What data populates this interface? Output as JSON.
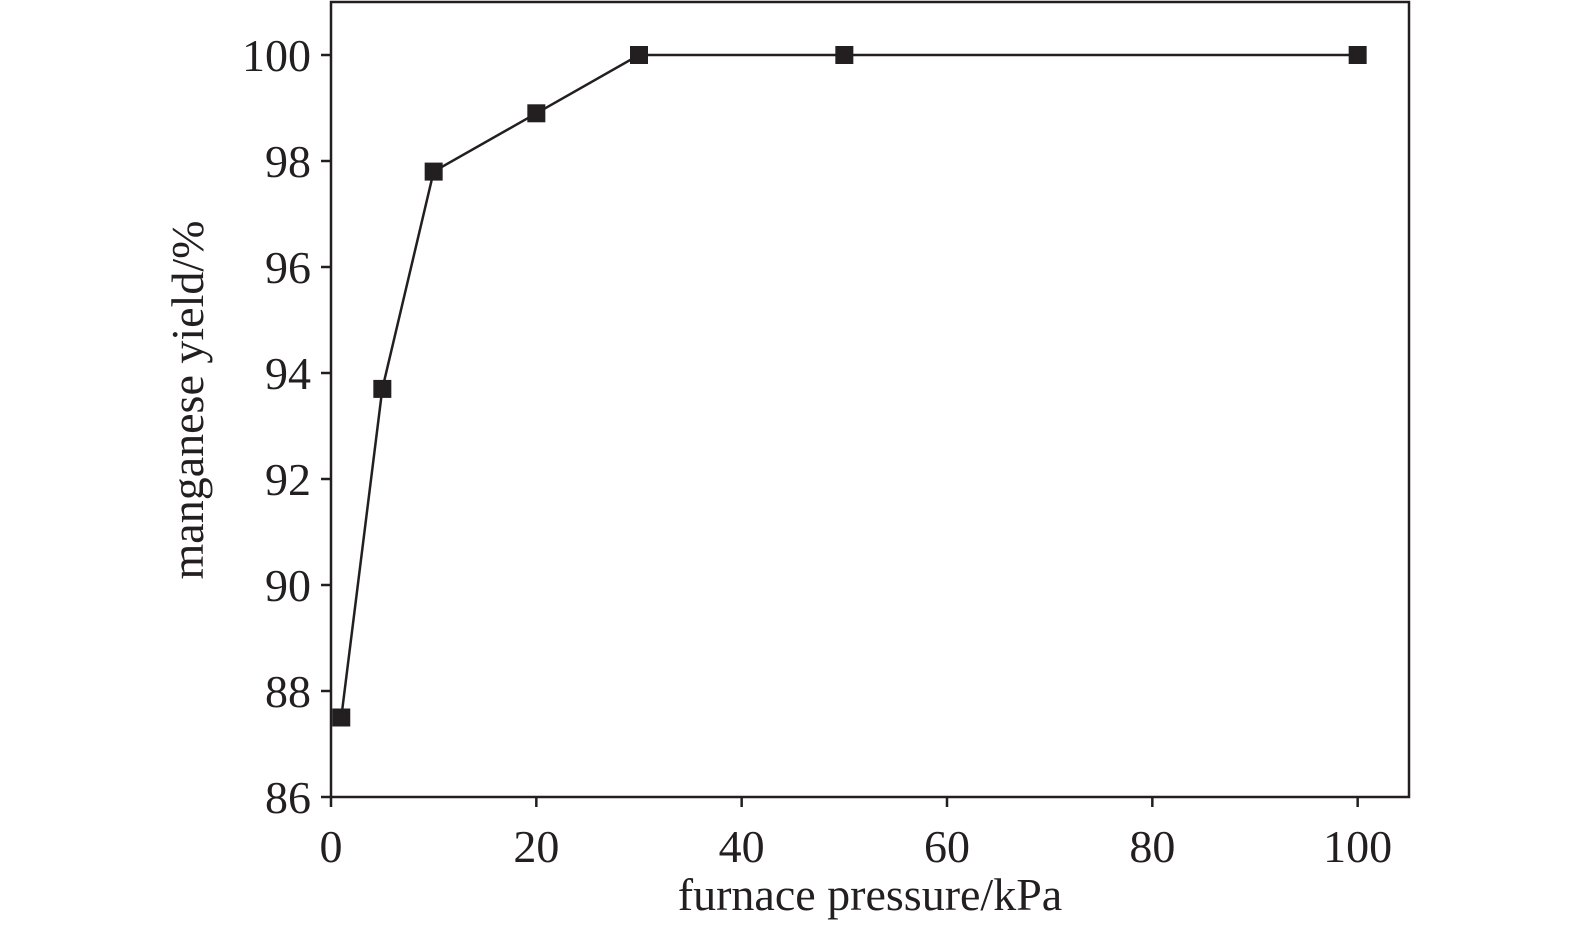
{
  "chart_data": {
    "type": "line",
    "x_label": "furnace pressure/kPa",
    "y_label": "manganese yield/%",
    "x": [
      1,
      5,
      10,
      20,
      30,
      50,
      100
    ],
    "series": [
      {
        "name": "manganese yield",
        "color": "#231f20",
        "values": [
          87.5,
          93.7,
          97.8,
          98.9,
          100,
          100,
          100
        ]
      }
    ],
    "xlim": [
      0,
      105
    ],
    "xticks": [
      0,
      20,
      40,
      60,
      80,
      100
    ],
    "ylim": [
      86,
      101
    ],
    "yticks": [
      86,
      88,
      90,
      92,
      94,
      96,
      98,
      100
    ],
    "grid": false,
    "marker": "square"
  }
}
